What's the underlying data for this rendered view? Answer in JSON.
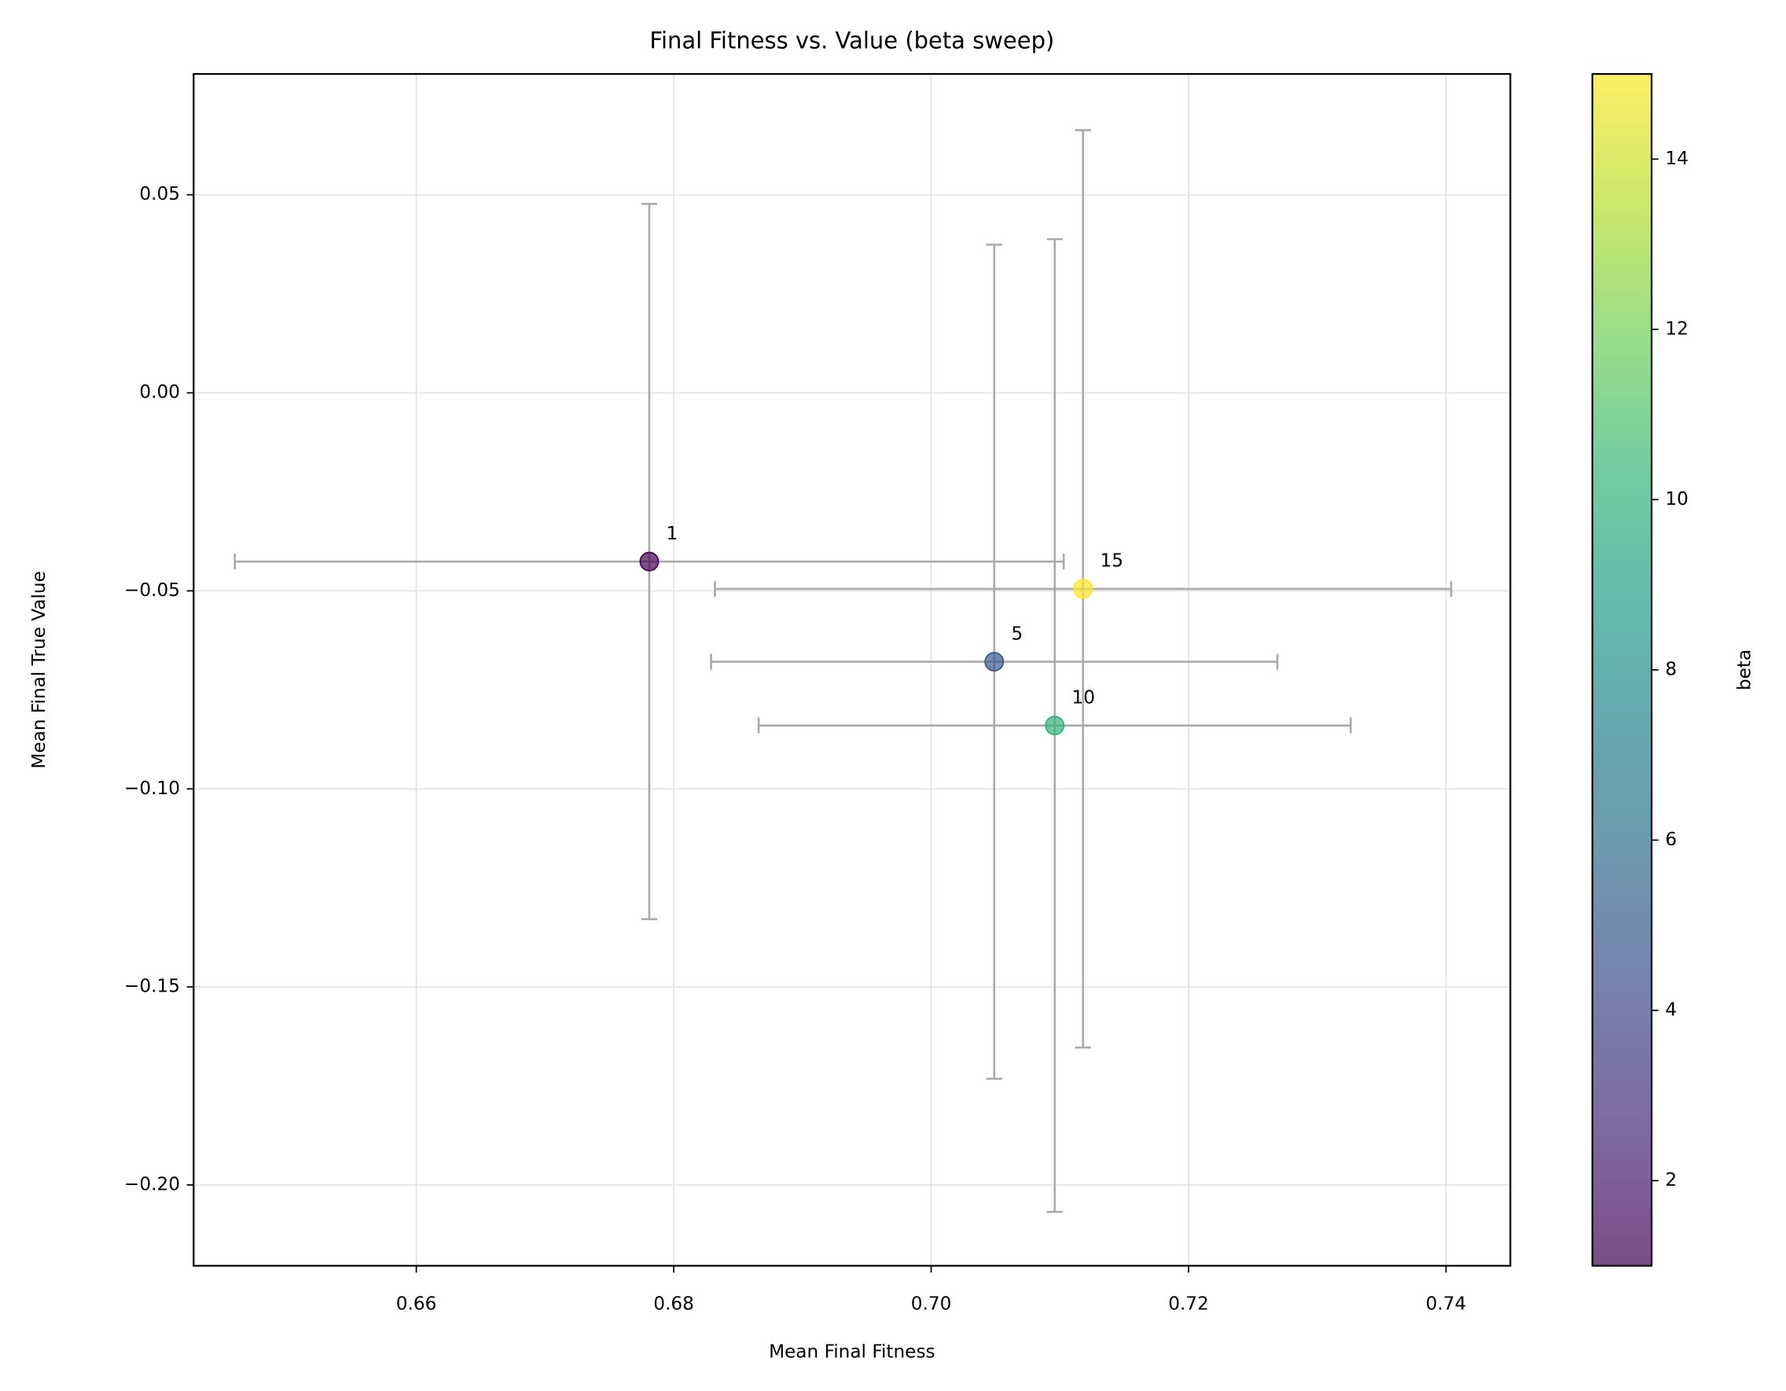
{
  "chart_data": {
    "type": "scatter",
    "title": "Final Fitness vs. Value (beta sweep)",
    "x_label": "Mean Final Fitness",
    "y_label": "Mean Final True Value",
    "colorbar_label": "beta",
    "series": [
      {
        "x": [
          0.6781,
          0.7049,
          0.7096,
          0.7118
        ],
        "values": [
          -0.0426,
          -0.0679,
          -0.084,
          -0.0495
        ],
        "xerr": [
          0.0322,
          0.022,
          0.023,
          0.0286
        ],
        "yerr": [
          0.0903,
          0.1053,
          0.1228,
          0.1158
        ],
        "c": [
          1,
          5,
          10,
          15
        ]
      }
    ],
    "xlim": [
      0.6427,
      0.745
    ],
    "ylim": [
      -0.2204,
      0.0805
    ],
    "xticks": [
      {
        "value": 0.66,
        "label": "0.66"
      },
      {
        "value": 0.68,
        "label": "0.68"
      },
      {
        "value": 0.7,
        "label": "0.70"
      },
      {
        "value": 0.72,
        "label": "0.72"
      },
      {
        "value": 0.74,
        "label": "0.74"
      }
    ],
    "yticks": [
      {
        "value": 0.05,
        "label": "0.05"
      },
      {
        "value": 0,
        "label": "0.00"
      },
      {
        "value": -0.05,
        "label": "−0.05"
      },
      {
        "value": -0.1,
        "label": "−0.10"
      },
      {
        "value": -0.15,
        "label": "−0.15"
      },
      {
        "value": -0.2,
        "label": "−0.20"
      }
    ],
    "clim": [
      1,
      15
    ],
    "cticks": [
      2,
      4,
      6,
      8,
      10,
      12,
      14
    ],
    "colormap": [
      "#440154",
      "#482878",
      "#3e4989",
      "#31688e",
      "#26828e",
      "#1f9e89",
      "#35b779",
      "#6ece58",
      "#b5de2b",
      "#fde725"
    ],
    "marker_opacity": 0.7,
    "errorbar_color": "#aaaaaa",
    "grid": true
  }
}
